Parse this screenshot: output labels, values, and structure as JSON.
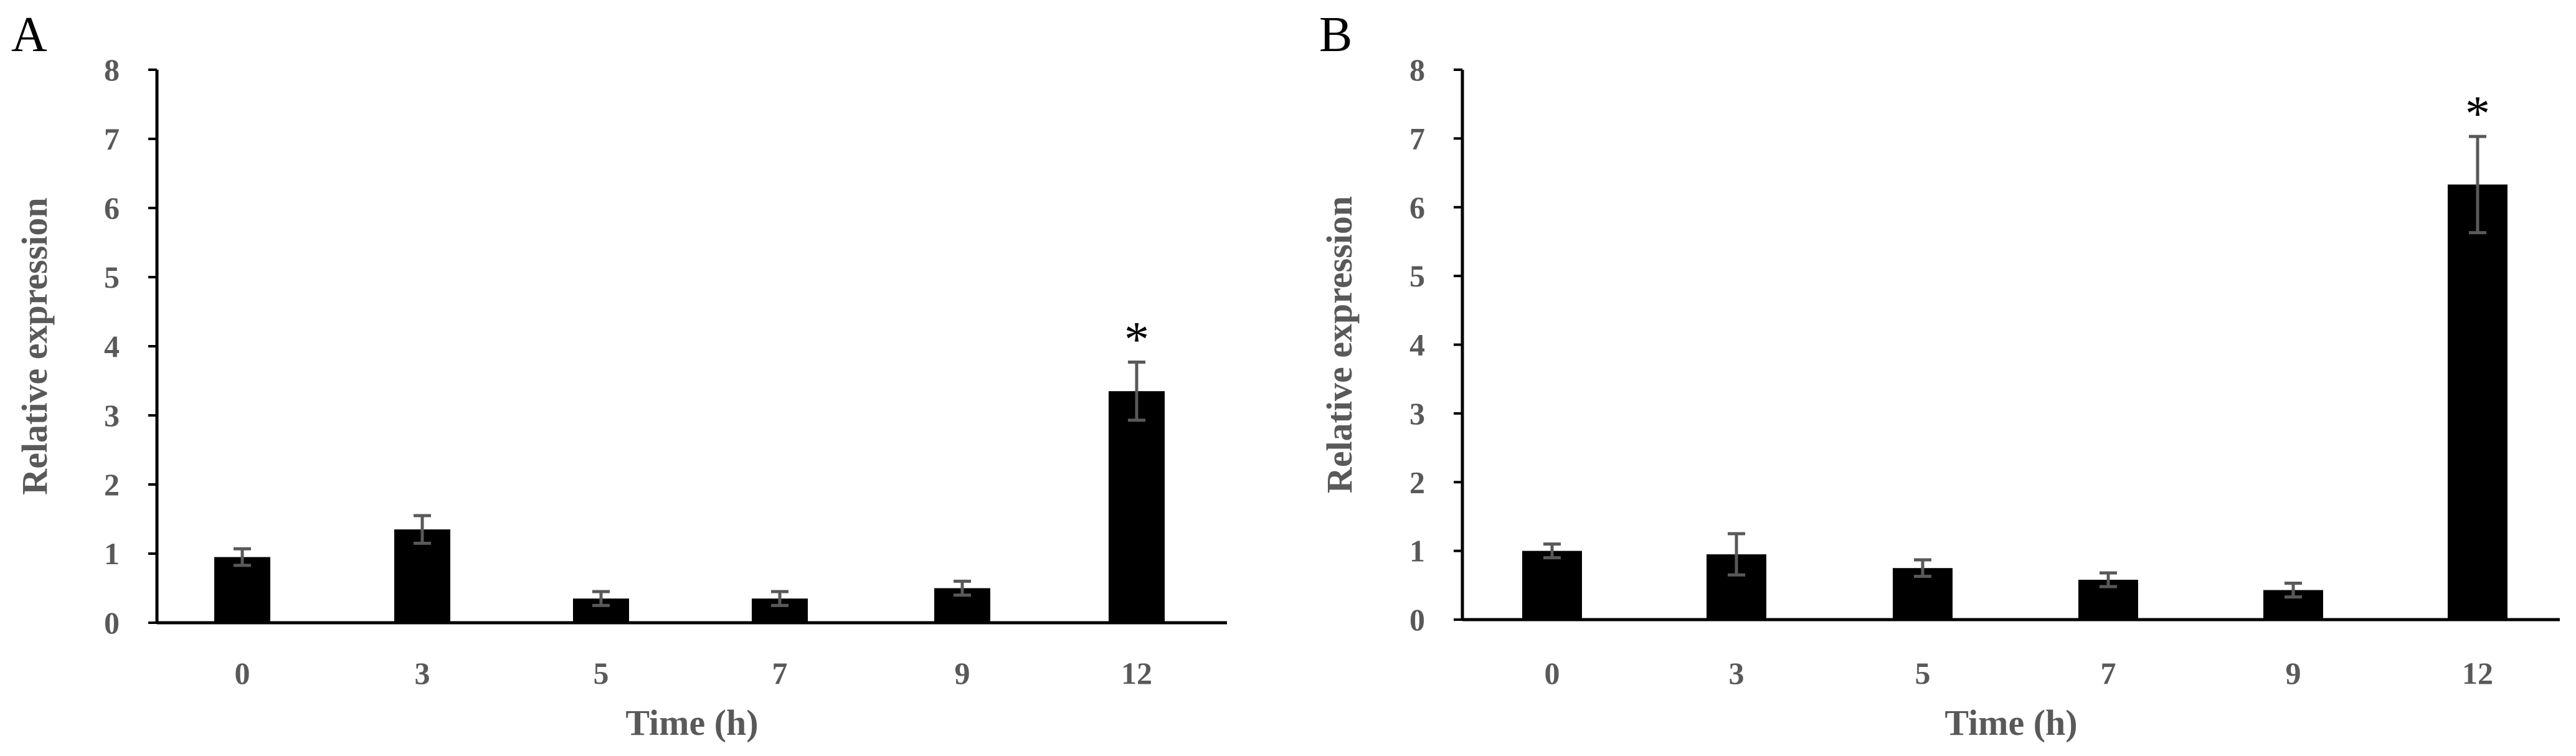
{
  "chart_data": [
    {
      "panel": "A",
      "type": "bar",
      "categories": [
        "0",
        "3",
        "5",
        "7",
        "9",
        "12"
      ],
      "values": [
        0.95,
        1.35,
        0.35,
        0.35,
        0.5,
        3.35
      ],
      "errors": [
        0.12,
        0.2,
        0.1,
        0.1,
        0.1,
        0.42
      ],
      "significance": [
        "",
        "",
        "",
        "",
        "",
        "*"
      ],
      "xlabel": "Time (h)",
      "ylabel": "Relative expression",
      "yticks": [
        "0",
        "1",
        "2",
        "3",
        "4",
        "5",
        "6",
        "7",
        "8"
      ],
      "ylim": [
        0,
        8
      ],
      "grid": false,
      "bar_color": "#000000",
      "error_color": "#595959"
    },
    {
      "panel": "B",
      "type": "bar",
      "categories": [
        "0",
        "3",
        "5",
        "7",
        "9",
        "12"
      ],
      "values": [
        1.0,
        0.95,
        0.75,
        0.58,
        0.43,
        6.33
      ],
      "errors": [
        0.1,
        0.3,
        0.12,
        0.1,
        0.1,
        0.7
      ],
      "significance": [
        "",
        "",
        "",
        "",
        "",
        "*"
      ],
      "xlabel": "Time (h)",
      "ylabel": "Relative expression",
      "yticks": [
        "0",
        "1",
        "2",
        "3",
        "4",
        "5",
        "6",
        "7",
        "8"
      ],
      "ylim": [
        0,
        8
      ],
      "grid": false,
      "bar_color": "#000000",
      "error_color": "#595959"
    }
  ]
}
